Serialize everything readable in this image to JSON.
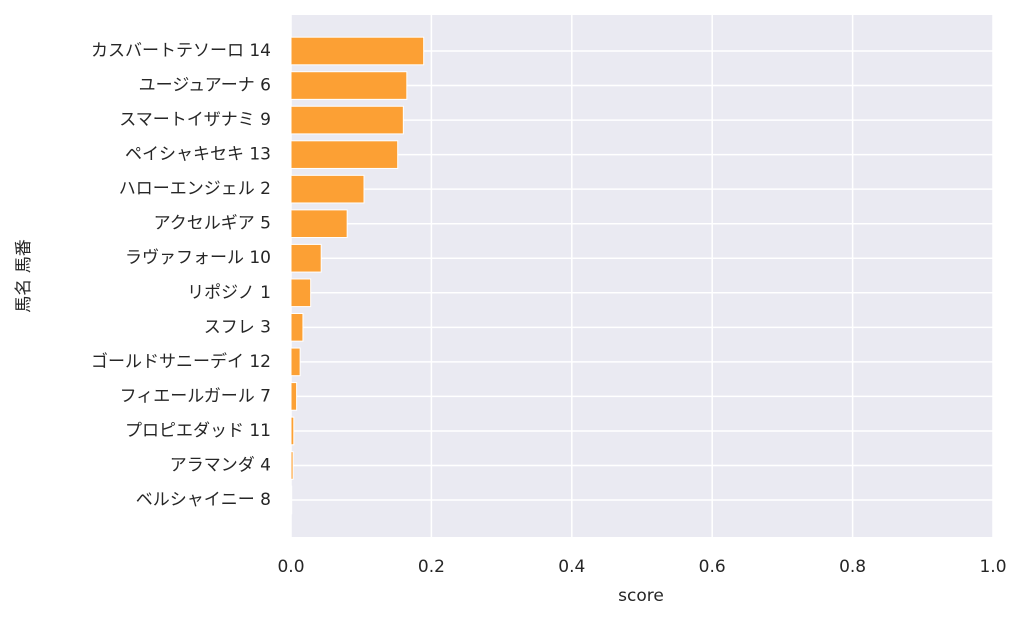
{
  "chart_data": {
    "type": "barh",
    "xlabel": "score",
    "ylabel": "馬名 馬番",
    "categories": [
      "カスバートテソーロ 14",
      "ユージュアーナ 6",
      "スマートイザナミ 9",
      "ペイシャキセキ 13",
      "ハローエンジェル 2",
      "アクセルギア 5",
      "ラヴァフォール 10",
      "リポジノ 1",
      "スフレ 3",
      "ゴールドサニーデイ 12",
      "フィエールガール 7",
      "プロピエダッド 11",
      "アラマンダ 4",
      "ベルシャイニー 8"
    ],
    "values": [
      0.189,
      0.165,
      0.16,
      0.152,
      0.104,
      0.08,
      0.043,
      0.028,
      0.017,
      0.013,
      0.008,
      0.004,
      0.003,
      0.001
    ],
    "color": "#fca034",
    "xlim": [
      0,
      1
    ],
    "xticks": [
      {
        "value": 0,
        "label": "0.0"
      },
      0.2,
      0.4,
      0.6,
      0.8,
      {
        "value": 1,
        "label": "1.0"
      }
    ],
    "grid": true
  }
}
